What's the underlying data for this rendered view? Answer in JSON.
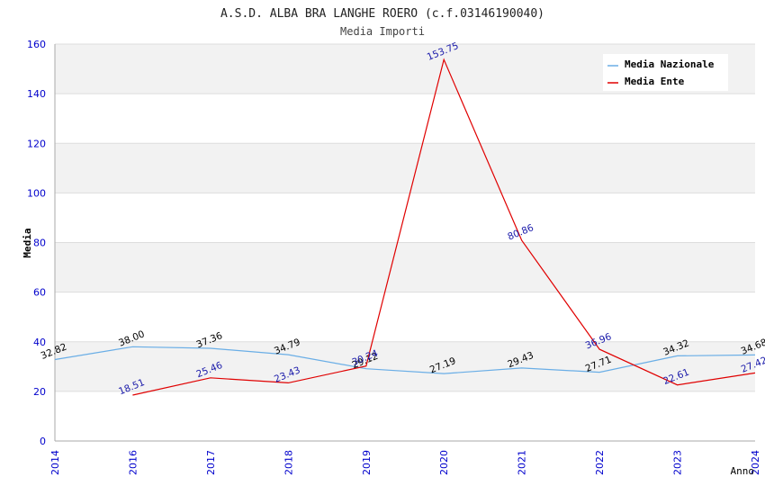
{
  "chart_data": {
    "type": "line",
    "title": "A.S.D. ALBA BRA LANGHE ROERO (c.f.03146190040)",
    "subtitle": "Media Importi",
    "xlabel": "Anno",
    "ylabel": "Media",
    "categories": [
      "2014",
      "2016",
      "2017",
      "2018",
      "2019",
      "2020",
      "2021",
      "2022",
      "2023",
      "2024"
    ],
    "ylim": [
      0,
      160
    ],
    "yticks": [
      0,
      20,
      40,
      60,
      80,
      100,
      120,
      140,
      160
    ],
    "grid": true,
    "legend_position": "top-right",
    "series": [
      {
        "name": "Media Nazionale",
        "color": "#6aaee6",
        "label_color": "#000000",
        "values": [
          32.82,
          38.0,
          37.36,
          34.79,
          29.12,
          27.19,
          29.43,
          27.71,
          34.32,
          34.68
        ],
        "labels": [
          "32.82",
          "38.00",
          "37.36",
          "34.79",
          "29.12",
          "27.19",
          "29.43",
          "27.71",
          "34.32",
          "34.68"
        ]
      },
      {
        "name": "Media Ente",
        "color": "#e00000",
        "label_color": "#1a1aaa",
        "values": [
          null,
          18.51,
          25.46,
          23.43,
          30.24,
          153.75,
          80.86,
          36.96,
          22.61,
          27.42
        ],
        "labels": [
          null,
          "18.51",
          "25.46",
          "23.43",
          "30.24",
          "153.75",
          "80.86",
          "36.96",
          "22.61",
          "27.42"
        ]
      }
    ],
    "colors": {
      "tick_label": "#0000cc",
      "band": "#f2f2f2",
      "grid": "#dddddd",
      "axis": "#aaaaaa"
    }
  }
}
